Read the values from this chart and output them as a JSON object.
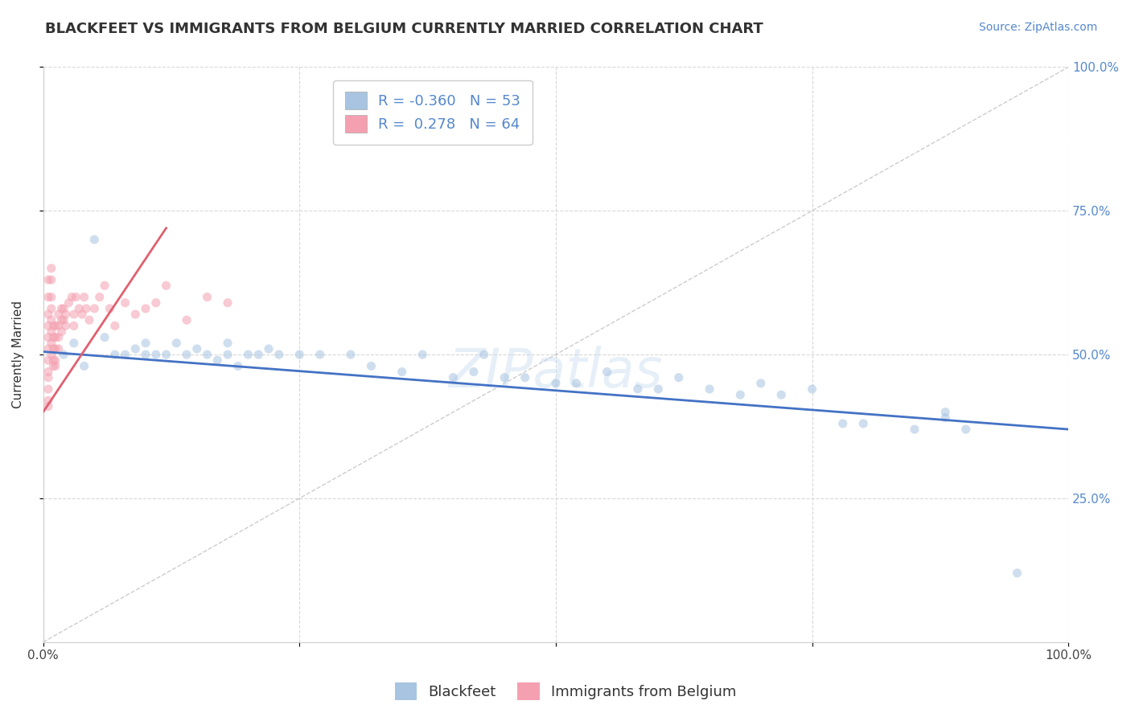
{
  "title": "BLACKFEET VS IMMIGRANTS FROM BELGIUM CURRENTLY MARRIED CORRELATION CHART",
  "source": "Source: ZipAtlas.com",
  "ylabel": "Currently Married",
  "watermark": "ZIPatlas",
  "legend_blue_R": "-0.360",
  "legend_blue_N": "53",
  "legend_pink_R": "0.278",
  "legend_pink_N": "64",
  "blue_color": "#a8c4e0",
  "pink_color": "#f4a0b0",
  "blue_line_color": "#4472c4",
  "pink_line_color": "#e06070",
  "diagonal_color": "#cccccc",
  "background_color": "#ffffff",
  "xlim": [
    0.0,
    1.0
  ],
  "ylim": [
    0.0,
    1.0
  ],
  "x_ticks": [
    0.0,
    0.25,
    0.5,
    0.75,
    1.0
  ],
  "x_tick_labels": [
    "0.0%",
    "",
    "",
    "",
    "100.0%"
  ],
  "y_ticks": [
    0.25,
    0.5,
    0.75,
    1.0
  ],
  "y_tick_labels_right": [
    "25.0%",
    "50.0%",
    "75.0%",
    "100.0%"
  ],
  "blue_scatter_x": [
    0.02,
    0.03,
    0.04,
    0.05,
    0.06,
    0.07,
    0.08,
    0.09,
    0.1,
    0.1,
    0.11,
    0.12,
    0.13,
    0.14,
    0.15,
    0.16,
    0.17,
    0.18,
    0.18,
    0.19,
    0.2,
    0.21,
    0.22,
    0.23,
    0.25,
    0.27,
    0.3,
    0.32,
    0.35,
    0.37,
    0.4,
    0.42,
    0.43,
    0.45,
    0.47,
    0.5,
    0.52,
    0.55,
    0.58,
    0.6,
    0.62,
    0.65,
    0.68,
    0.7,
    0.72,
    0.75,
    0.78,
    0.8,
    0.85,
    0.88,
    0.88,
    0.9,
    0.95
  ],
  "blue_scatter_y": [
    0.5,
    0.52,
    0.48,
    0.7,
    0.53,
    0.5,
    0.5,
    0.51,
    0.52,
    0.5,
    0.5,
    0.5,
    0.52,
    0.5,
    0.51,
    0.5,
    0.49,
    0.52,
    0.5,
    0.48,
    0.5,
    0.5,
    0.51,
    0.5,
    0.5,
    0.5,
    0.5,
    0.48,
    0.47,
    0.5,
    0.46,
    0.47,
    0.5,
    0.46,
    0.46,
    0.45,
    0.45,
    0.47,
    0.44,
    0.44,
    0.46,
    0.44,
    0.43,
    0.45,
    0.43,
    0.44,
    0.38,
    0.38,
    0.37,
    0.39,
    0.4,
    0.37,
    0.12
  ],
  "pink_scatter_x": [
    0.005,
    0.005,
    0.005,
    0.005,
    0.005,
    0.005,
    0.005,
    0.005,
    0.005,
    0.005,
    0.005,
    0.005,
    0.008,
    0.008,
    0.008,
    0.008,
    0.008,
    0.008,
    0.008,
    0.008,
    0.01,
    0.01,
    0.01,
    0.01,
    0.01,
    0.012,
    0.012,
    0.012,
    0.012,
    0.012,
    0.015,
    0.015,
    0.015,
    0.015,
    0.018,
    0.018,
    0.018,
    0.02,
    0.02,
    0.022,
    0.022,
    0.025,
    0.028,
    0.03,
    0.03,
    0.032,
    0.035,
    0.038,
    0.04,
    0.042,
    0.045,
    0.05,
    0.055,
    0.06,
    0.065,
    0.07,
    0.08,
    0.09,
    0.1,
    0.11,
    0.12,
    0.14,
    0.16,
    0.18
  ],
  "pink_scatter_y": [
    0.55,
    0.53,
    0.51,
    0.49,
    0.47,
    0.46,
    0.44,
    0.42,
    0.41,
    0.57,
    0.6,
    0.63,
    0.65,
    0.63,
    0.6,
    0.58,
    0.56,
    0.54,
    0.52,
    0.5,
    0.55,
    0.53,
    0.51,
    0.49,
    0.48,
    0.55,
    0.53,
    0.51,
    0.49,
    0.48,
    0.57,
    0.55,
    0.53,
    0.51,
    0.58,
    0.56,
    0.54,
    0.58,
    0.56,
    0.57,
    0.55,
    0.59,
    0.6,
    0.57,
    0.55,
    0.6,
    0.58,
    0.57,
    0.6,
    0.58,
    0.56,
    0.58,
    0.6,
    0.62,
    0.58,
    0.55,
    0.59,
    0.57,
    0.58,
    0.59,
    0.62,
    0.56,
    0.6,
    0.59
  ],
  "blue_line_x": [
    0.0,
    1.0
  ],
  "blue_line_y": [
    0.505,
    0.37
  ],
  "pink_line_x": [
    0.0,
    0.12
  ],
  "pink_line_y": [
    0.4,
    0.72
  ],
  "title_fontsize": 13,
  "axis_label_fontsize": 11,
  "tick_fontsize": 11,
  "legend_fontsize": 13,
  "source_fontsize": 10,
  "watermark_fontsize": 48,
  "scatter_size": 65,
  "scatter_alpha": 0.55
}
